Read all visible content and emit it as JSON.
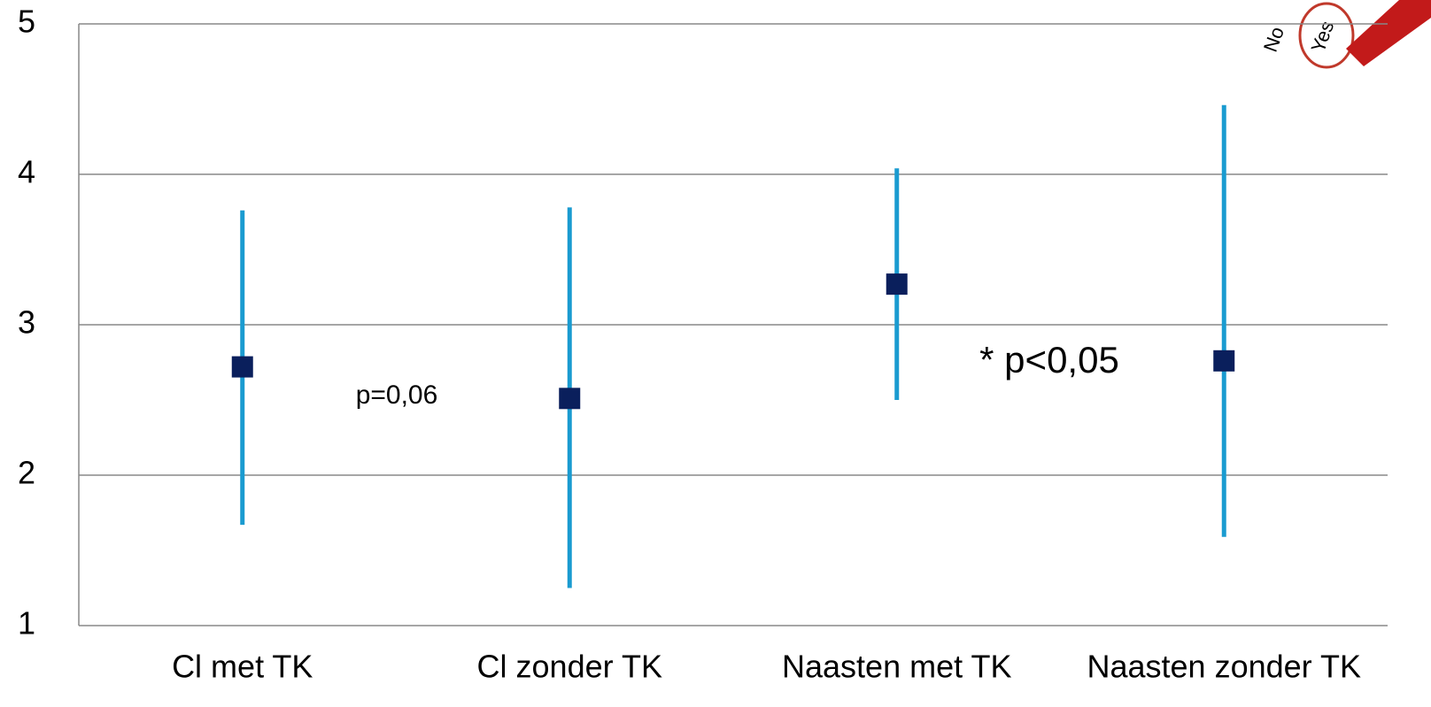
{
  "chart_data": {
    "type": "errorbar",
    "categories": [
      "Cl met TK",
      "Cl zonder  TK",
      "Naasten met TK",
      "Naasten zonder TK"
    ],
    "series": [
      {
        "color": "#0a1f5c",
        "bar_color": "#1a9bd0",
        "values": [
          2.72,
          2.51,
          3.27,
          2.76
        ],
        "low": [
          1.67,
          1.25,
          2.5,
          1.59
        ],
        "high": [
          3.76,
          3.78,
          4.04,
          4.46
        ]
      }
    ],
    "ylim": [
      1,
      5
    ],
    "yticks": [
      1,
      2,
      3,
      4,
      5
    ],
    "grid": true,
    "annotations": [
      "p=0,06",
      "* p<0,05"
    ],
    "icon_texts": [
      "No",
      "Yes"
    ]
  }
}
